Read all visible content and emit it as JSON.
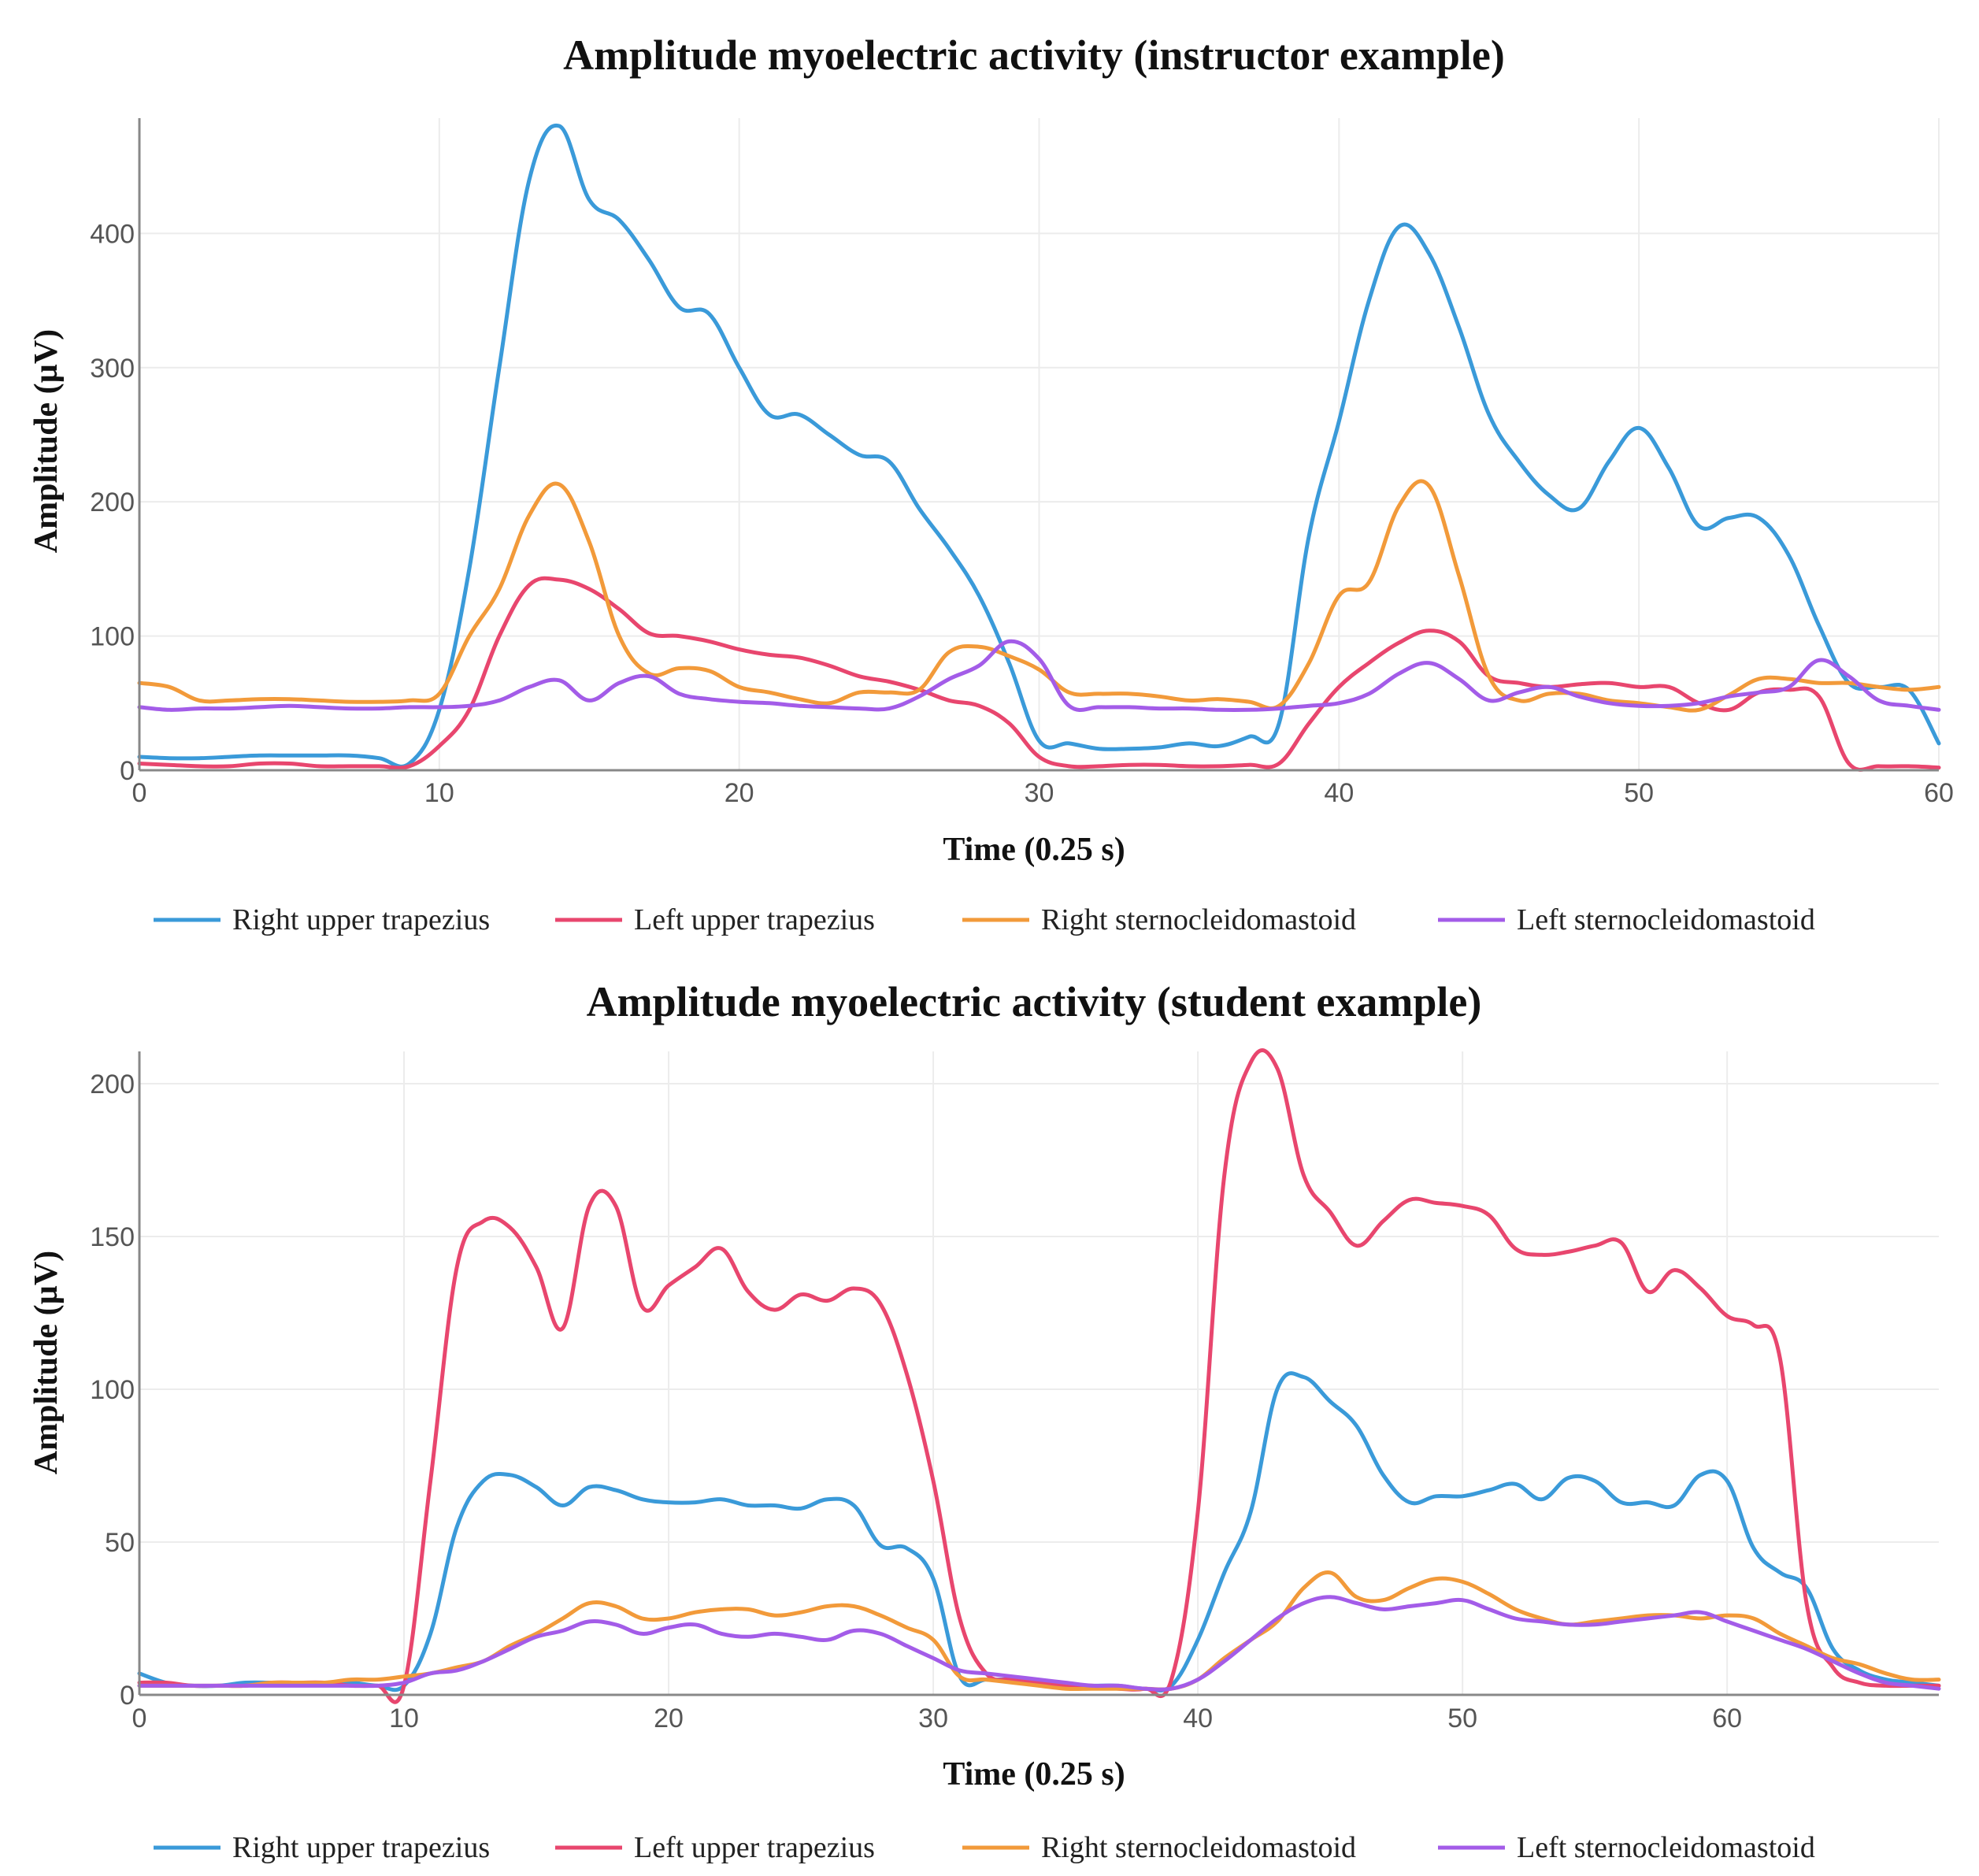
{
  "chart_data": [
    {
      "type": "line",
      "title": "Amplitude myoelectric activity (instructor example)",
      "xlabel": "Time (0.25 s)",
      "ylabel": "Amplitude (µV)",
      "xlim": [
        0,
        60
      ],
      "ylim": [
        0,
        480
      ],
      "xticks": [
        0,
        10,
        20,
        30,
        40,
        50,
        60
      ],
      "yticks": [
        0,
        100,
        200,
        300,
        400
      ],
      "grid": true,
      "legend_position": "bottom",
      "x": [
        0,
        1,
        2,
        3,
        4,
        5,
        6,
        7,
        8,
        9,
        10,
        11,
        12,
        13,
        14,
        15,
        16,
        17,
        18,
        19,
        20,
        21,
        22,
        23,
        24,
        25,
        26,
        27,
        28,
        29,
        30,
        31,
        32,
        33,
        34,
        35,
        36,
        37,
        38,
        39,
        40,
        41,
        42,
        43,
        44,
        45,
        46,
        47,
        48,
        49,
        50,
        51,
        52,
        53,
        54,
        55,
        56,
        57,
        58,
        59,
        60
      ],
      "series": [
        {
          "name": "Right upper trapezius",
          "color": "#3a9ad9",
          "values": [
            10,
            9,
            9,
            10,
            11,
            11,
            11,
            11,
            9,
            5,
            45,
            150,
            300,
            440,
            480,
            425,
            410,
            380,
            345,
            340,
            300,
            265,
            265,
            250,
            235,
            230,
            195,
            165,
            130,
            80,
            22,
            20,
            16,
            16,
            17,
            20,
            18,
            25,
            35,
            175,
            260,
            350,
            405,
            385,
            330,
            265,
            230,
            205,
            195,
            230,
            255,
            225,
            182,
            188,
            188,
            160,
            108,
            65,
            62,
            60,
            20
          ]
        },
        {
          "name": "Left upper trapezius",
          "color": "#e8466e",
          "values": [
            5,
            4,
            3,
            3,
            5,
            5,
            3,
            3,
            3,
            3,
            18,
            45,
            100,
            138,
            142,
            135,
            120,
            102,
            100,
            96,
            90,
            86,
            84,
            78,
            70,
            66,
            60,
            52,
            48,
            35,
            10,
            3,
            3,
            4,
            4,
            3,
            3,
            4,
            5,
            35,
            62,
            80,
            95,
            104,
            96,
            70,
            65,
            62,
            64,
            65,
            62,
            62,
            50,
            45,
            58,
            60,
            55,
            5,
            3,
            3,
            2
          ]
        },
        {
          "name": "Right sternocleidomastoid",
          "color": "#f29a3a",
          "values": [
            65,
            62,
            52,
            52,
            53,
            53,
            52,
            51,
            51,
            52,
            57,
            100,
            135,
            190,
            213,
            170,
            100,
            72,
            76,
            74,
            62,
            58,
            53,
            50,
            58,
            58,
            60,
            88,
            92,
            85,
            75,
            58,
            57,
            57,
            55,
            52,
            53,
            51,
            48,
            80,
            130,
            140,
            197,
            212,
            145,
            70,
            52,
            57,
            57,
            52,
            50,
            47,
            45,
            56,
            68,
            68,
            65,
            65,
            62,
            60,
            62
          ]
        },
        {
          "name": "Left sternocleidomastoid",
          "color": "#a35ce8",
          "values": [
            47,
            45,
            46,
            46,
            47,
            48,
            47,
            46,
            46,
            47,
            47,
            48,
            52,
            62,
            67,
            52,
            65,
            70,
            57,
            53,
            51,
            50,
            48,
            47,
            46,
            46,
            55,
            68,
            78,
            96,
            83,
            48,
            47,
            47,
            46,
            46,
            45,
            45,
            46,
            48,
            50,
            57,
            72,
            80,
            68,
            52,
            58,
            62,
            55,
            50,
            48,
            48,
            50,
            55,
            58,
            62,
            82,
            70,
            52,
            48,
            45
          ]
        }
      ]
    },
    {
      "type": "line",
      "title": "Amplitude myoelectric activity (student example)",
      "xlabel": "Time (0.25 s)",
      "ylabel": "Amplitude (µV)",
      "xlim": [
        0,
        68
      ],
      "ylim": [
        0,
        208
      ],
      "xticks": [
        0,
        10,
        20,
        30,
        40,
        50,
        60
      ],
      "yticks": [
        0,
        50,
        100,
        150,
        200
      ],
      "grid": true,
      "legend_position": "bottom",
      "x": [
        0,
        1,
        2,
        3,
        4,
        5,
        6,
        7,
        8,
        9,
        10,
        11,
        12,
        13,
        14,
        15,
        16,
        17,
        18,
        19,
        20,
        21,
        22,
        23,
        24,
        25,
        26,
        27,
        28,
        29,
        30,
        31,
        32,
        33,
        34,
        35,
        36,
        37,
        38,
        39,
        40,
        41,
        42,
        43,
        44,
        45,
        46,
        47,
        48,
        49,
        50,
        51,
        52,
        53,
        54,
        55,
        56,
        57,
        58,
        59,
        60,
        61,
        62,
        63,
        64,
        65,
        66,
        67,
        68
      ],
      "series": [
        {
          "name": "Right upper trapezius",
          "color": "#3a9ad9",
          "values": [
            7,
            4,
            3,
            3,
            4,
            4,
            4,
            4,
            4,
            3,
            3,
            20,
            55,
            70,
            72,
            68,
            62,
            68,
            67,
            64,
            63,
            63,
            64,
            62,
            62,
            61,
            64,
            62,
            49,
            48,
            38,
            6,
            5,
            5,
            4,
            3,
            3,
            3,
            2,
            3,
            18,
            40,
            60,
            100,
            104,
            96,
            88,
            72,
            63,
            65,
            65,
            67,
            69,
            64,
            71,
            70,
            63,
            63,
            62,
            72,
            70,
            48,
            40,
            35,
            15,
            8,
            5,
            4,
            3
          ]
        },
        {
          "name": "Left upper trapezius",
          "color": "#e8466e",
          "values": [
            4,
            4,
            3,
            3,
            3,
            4,
            4,
            4,
            3,
            3,
            3,
            70,
            140,
            155,
            153,
            140,
            120,
            160,
            160,
            127,
            134,
            140,
            146,
            132,
            126,
            131,
            129,
            133,
            128,
            105,
            70,
            25,
            7,
            5,
            4,
            3,
            3,
            2,
            2,
            5,
            60,
            170,
            207,
            205,
            170,
            158,
            147,
            155,
            162,
            161,
            160,
            157,
            146,
            144,
            145,
            147,
            148,
            132,
            139,
            133,
            124,
            121,
            110,
            30,
            9,
            4,
            3,
            3,
            3
          ]
        },
        {
          "name": "Right sternocleidomastoid",
          "color": "#f29a3a",
          "values": [
            3,
            3,
            3,
            3,
            3,
            4,
            4,
            4,
            5,
            5,
            6,
            7,
            9,
            11,
            16,
            20,
            25,
            30,
            29,
            25,
            25,
            27,
            28,
            28,
            26,
            27,
            29,
            29,
            26,
            22,
            18,
            6,
            5,
            4,
            3,
            2,
            2,
            2,
            2,
            2,
            5,
            12,
            18,
            24,
            35,
            40,
            32,
            31,
            35,
            38,
            37,
            33,
            28,
            25,
            23,
            24,
            25,
            26,
            26,
            25,
            26,
            25,
            20,
            16,
            12,
            10,
            7,
            5,
            5
          ]
        },
        {
          "name": "Left sternocleidomastoid",
          "color": "#a35ce8",
          "values": [
            3,
            3,
            3,
            3,
            3,
            3,
            3,
            3,
            3,
            3,
            4,
            7,
            8,
            11,
            15,
            19,
            21,
            24,
            23,
            20,
            22,
            23,
            20,
            19,
            20,
            19,
            18,
            21,
            20,
            16,
            12,
            8,
            7,
            6,
            5,
            4,
            3,
            3,
            2,
            2,
            5,
            11,
            18,
            25,
            30,
            32,
            30,
            28,
            29,
            30,
            31,
            28,
            25,
            24,
            23,
            23,
            24,
            25,
            26,
            27,
            24,
            21,
            18,
            15,
            11,
            7,
            4,
            3,
            2
          ]
        }
      ]
    }
  ]
}
